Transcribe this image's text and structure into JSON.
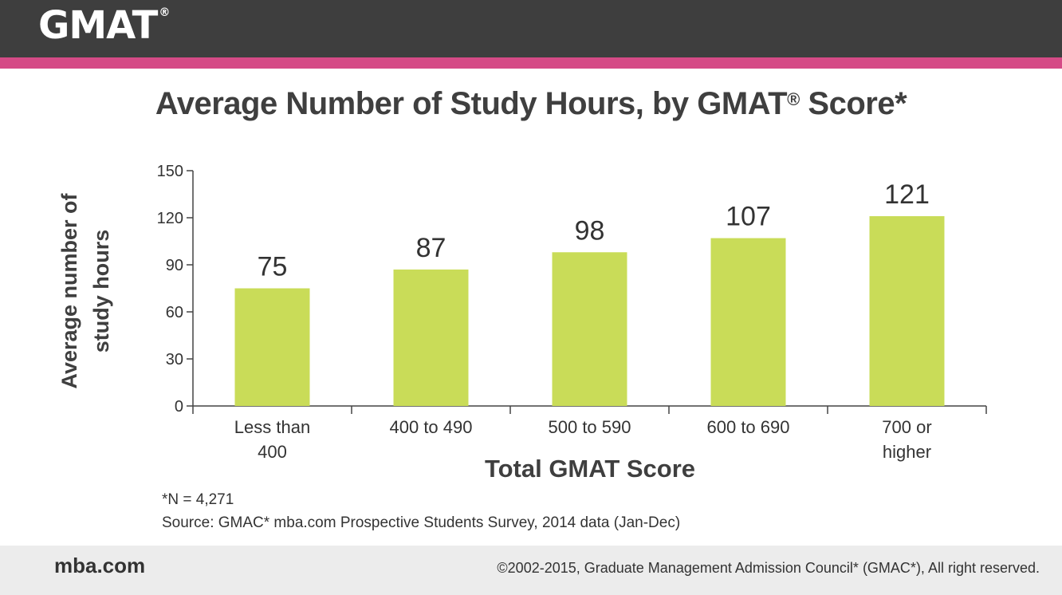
{
  "header": {
    "logo_text": "GMAT",
    "logo_mark": "®"
  },
  "chart_data": {
    "type": "bar",
    "title": "Average Number of Study Hours, by GMAT",
    "title_mark": "®",
    "title_suffix": " Score*",
    "categories": [
      "Less than 400",
      "400 to 490",
      "500 to 590",
      "600 to 690",
      "700 or higher"
    ],
    "category_lines": [
      [
        "Less than",
        "400"
      ],
      [
        "400 to 490"
      ],
      [
        "500 to 590"
      ],
      [
        "600 to 690"
      ],
      [
        "700 or",
        "higher"
      ]
    ],
    "values": [
      75,
      87,
      98,
      107,
      121
    ],
    "value_labels": [
      "75",
      "87",
      "98",
      "107",
      "121"
    ],
    "ylabel": "Average number of study hours",
    "ylabel_lines": [
      "Average number of",
      "study hours"
    ],
    "xlabel": "Total GMAT Score",
    "ylim": [
      0,
      150
    ],
    "yticks": [
      0,
      30,
      60,
      90,
      120,
      150
    ],
    "grid": false,
    "bar_color": "#c9dc58"
  },
  "notes": {
    "n": "*N = 4,271",
    "source": "Source: GMAC* mba.com Prospective Students Survey, 2014 data (Jan-Dec)"
  },
  "footer": {
    "site": "mba.com",
    "copyright": "©2002-2015, Graduate Management Admission Council* (GMAC*), All right reserved."
  },
  "colors": {
    "header_bg": "#3e3e3e",
    "accent_stripe": "#d54a86",
    "footer_bg": "#ececec"
  }
}
